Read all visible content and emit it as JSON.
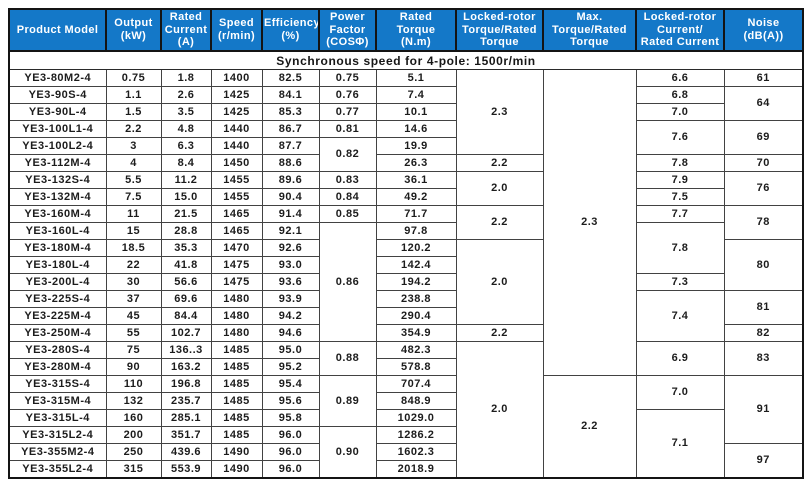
{
  "colors": {
    "header_bg": "#1478c8",
    "header_text": "#ffffff",
    "border_dark": "#141414",
    "grid_line": "#424242",
    "body_text": "#1c1c1c"
  },
  "table": {
    "columns": [
      {
        "label": "Product Model"
      },
      {
        "label": "Output\n(kW)"
      },
      {
        "label": "Rated\nCurrent\n(A)"
      },
      {
        "label": "Speed\n(r/min)"
      },
      {
        "label": "Efficiency\n(%)"
      },
      {
        "label": "Power\nFactor\n(COSΦ)"
      },
      {
        "label": "Rated\nTorque\n(N.m)"
      },
      {
        "label": "Locked-rotor\nTorque/Rated\nTorque"
      },
      {
        "label": "Max.\nTorque/Rated\nTorque"
      },
      {
        "label": "Locked-rotor\nCurrent/\nRated Current"
      },
      {
        "label": "Noise\n(dB(A))"
      }
    ],
    "subheader": "Synchronous speed for 4-pole: 1500r/min",
    "rows": [
      {
        "cells": [
          "YE3-80M2-4",
          "0.75",
          "1.8",
          "1400",
          "82.5",
          "0.75",
          "5.1",
          {
            "v": "2.3",
            "rs": 5
          },
          {
            "v": "2.3",
            "rs": 18
          },
          "6.6",
          "61"
        ]
      },
      {
        "cells": [
          "YE3-90S-4",
          "1.1",
          "2.6",
          "1425",
          "84.1",
          "0.76",
          "7.4",
          "6.8",
          {
            "v": "64",
            "rs": 2
          }
        ]
      },
      {
        "cells": [
          "YE3-90L-4",
          "1.5",
          "3.5",
          "1425",
          "85.3",
          "0.77",
          "10.1",
          "7.0"
        ]
      },
      {
        "cells": [
          "YE3-100L1-4",
          "2.2",
          "4.8",
          "1440",
          "86.7",
          "0.81",
          "14.6",
          {
            "v": "7.6",
            "rs": 2
          },
          {
            "v": "69",
            "rs": 2
          }
        ]
      },
      {
        "cells": [
          "YE3-100L2-4",
          "3",
          "6.3",
          "1440",
          "87.7",
          {
            "v": "0.82",
            "rs": 2
          },
          "19.9"
        ]
      },
      {
        "cells": [
          "YE3-112M-4",
          "4",
          "8.4",
          "1450",
          "88.6",
          "26.3",
          "2.2",
          "7.8",
          "70"
        ]
      },
      {
        "cells": [
          "YE3-132S-4",
          "5.5",
          "11.2",
          "1455",
          "89.6",
          "0.83",
          "36.1",
          {
            "v": "2.0",
            "rs": 2
          },
          "7.9",
          {
            "v": "76",
            "rs": 2
          }
        ]
      },
      {
        "cells": [
          "YE3-132M-4",
          "7.5",
          "15.0",
          "1455",
          "90.4",
          "0.84",
          "49.2",
          "7.5"
        ]
      },
      {
        "cells": [
          "YE3-160M-4",
          "11",
          "21.5",
          "1465",
          "91.4",
          "0.85",
          "71.7",
          {
            "v": "2.2",
            "rs": 2
          },
          "7.7",
          {
            "v": "78",
            "rs": 2
          }
        ]
      },
      {
        "cells": [
          "YE3-160L-4",
          "15",
          "28.8",
          "1465",
          "92.1",
          {
            "v": "0.86",
            "rs": 7
          },
          "97.8",
          {
            "v": "7.8",
            "rs": 3
          }
        ]
      },
      {
        "cells": [
          "YE3-180M-4",
          "18.5",
          "35.3",
          "1470",
          "92.6",
          "120.2",
          {
            "v": "2.0",
            "rs": 5
          },
          {
            "v": "80",
            "rs": 3
          }
        ]
      },
      {
        "cells": [
          "YE3-180L-4",
          "22",
          "41.8",
          "1475",
          "93.0",
          "142.4"
        ]
      },
      {
        "cells": [
          "YE3-200L-4",
          "30",
          "56.6",
          "1475",
          "93.6",
          "194.2",
          "7.3"
        ]
      },
      {
        "cells": [
          "YE3-225S-4",
          "37",
          "69.6",
          "1480",
          "93.9",
          "238.8",
          {
            "v": "7.4",
            "rs": 3
          },
          {
            "v": "81",
            "rs": 2
          }
        ]
      },
      {
        "cells": [
          "YE3-225M-4",
          "45",
          "84.4",
          "1480",
          "94.2",
          "290.4"
        ]
      },
      {
        "cells": [
          "YE3-250M-4",
          "55",
          "102.7",
          "1480",
          "94.6",
          "354.9",
          "2.2",
          "82"
        ]
      },
      {
        "cells": [
          "YE3-280S-4",
          "75",
          "136..3",
          "1485",
          "95.0",
          {
            "v": "0.88",
            "rs": 2
          },
          "482.3",
          {
            "v": "2.0",
            "rs": 8
          },
          {
            "v": "6.9",
            "rs": 2
          },
          {
            "v": "83",
            "rs": 2
          }
        ]
      },
      {
        "cells": [
          "YE3-280M-4",
          "90",
          "163.2",
          "1485",
          "95.2",
          "578.8"
        ]
      },
      {
        "cells": [
          "YE3-315S-4",
          "110",
          "196.8",
          "1485",
          "95.4",
          {
            "v": "0.89",
            "rs": 3
          },
          "707.4",
          {
            "v": "2.2",
            "rs": 6
          },
          {
            "v": "7.0",
            "rs": 2
          },
          {
            "v": "91",
            "rs": 4
          }
        ]
      },
      {
        "cells": [
          "YE3-315M-4",
          "132",
          "235.7",
          "1485",
          "95.6",
          "848.9"
        ]
      },
      {
        "cells": [
          "YE3-315L-4",
          "160",
          "285.1",
          "1485",
          "95.8",
          "1029.0",
          {
            "v": "7.1",
            "rs": 4
          }
        ]
      },
      {
        "cells": [
          "YE3-315L2-4",
          "200",
          "351.7",
          "1485",
          "96.0",
          {
            "v": "0.90",
            "rs": 3
          },
          "1286.2"
        ]
      },
      {
        "cells": [
          "YE3-355M2-4",
          "250",
          "439.6",
          "1490",
          "96.0",
          "1602.3",
          {
            "v": "97",
            "rs": 2
          }
        ]
      },
      {
        "cells": [
          "YE3-355L2-4",
          "315",
          "553.9",
          "1490",
          "96.0",
          "2018.9"
        ]
      }
    ]
  }
}
